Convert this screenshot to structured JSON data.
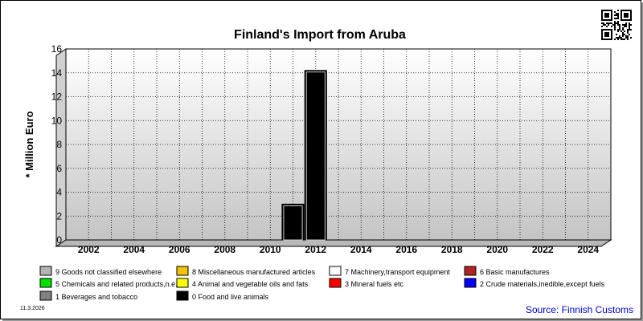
{
  "chart_data": {
    "type": "bar",
    "title": "Finland's Import from Aruba",
    "ylabel": "* Million Euro",
    "xlabel": "",
    "x_years": [
      2011,
      2012
    ],
    "series": [
      {
        "name": "0 Food and live animals",
        "color": "#000000",
        "values": [
          3.0,
          14.2
        ]
      }
    ],
    "x_ticks": [
      "2002",
      "2004",
      "2006",
      "2008",
      "2010",
      "2012",
      "2014",
      "2016",
      "2018",
      "2020",
      "2022",
      "2024"
    ],
    "x_range": [
      2001,
      2025
    ],
    "y_ticks": [
      0,
      2,
      4,
      6,
      8,
      10,
      12,
      14,
      16
    ],
    "ylim": [
      0,
      16
    ],
    "grid": true,
    "legend_position": "bottom",
    "legend": [
      {
        "label": "9 Goods not classified elsewhere",
        "color": "#b4b4b4"
      },
      {
        "label": "8 Miscellaneous manufactured articles",
        "color": "#f2c200"
      },
      {
        "label": "7 Machinery,transport equipment",
        "color": "#ffffff"
      },
      {
        "label": "6 Basic manufactures",
        "color": "#b22222"
      },
      {
        "label": "5 Chemicals and related products,n.e.s.",
        "color": "#00e000"
      },
      {
        "label": "4 Animal and vegetable oils and fats",
        "color": "#ffff00"
      },
      {
        "label": "3 Mineral fuels etc",
        "color": "#ff0000"
      },
      {
        "label": "2 Crude materials,inedible,except fuels",
        "color": "#0000ff"
      },
      {
        "label": "1 Beverages and tobacco",
        "color": "#808080"
      },
      {
        "label": "0 Food and live animals",
        "color": "#000000"
      }
    ]
  },
  "footer": {
    "date": "11.3.2026",
    "source": "Source: Finnish Customs",
    "source_color": "#0000cc"
  },
  "qr_icon": "qr-code-icon"
}
